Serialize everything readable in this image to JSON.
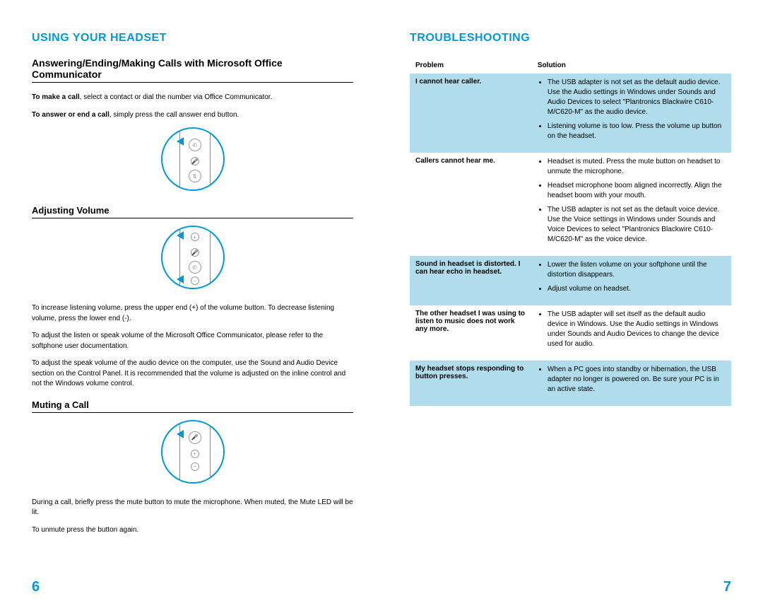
{
  "colors": {
    "accent": "#0099d6",
    "shade": "#b0dceb",
    "text": "#000000",
    "background": "#ffffff",
    "diagram_stroke": "#888888"
  },
  "left": {
    "title": "USING YOUR HEADSET",
    "heading1": "Answering/Ending/Making Calls with Microsoft Office Communicator",
    "p1_bold": "To make a call",
    "p1_rest": ", select a contact or dial the number via Office Communicator.",
    "p2_bold": "To answer or end a call",
    "p2_rest": ", simply press the call answer end button.",
    "heading2": "Adjusting Volume",
    "vol_p1": "To increase listening volume, press the upper end (+) of the volume button. To decrease listening volume, press the lower end (-).",
    "vol_p2": "To adjust the listen or speak volume of the Microsoft Office Communicator, please refer to the softphone user documentation.",
    "vol_p3": "To adjust the speak volume of the audio device on the computer, use the Sound and Audio Device section on the Control Panel. It is recommended that the volume is adjusted on the inline control and not the Windows volume control.",
    "heading3": "Muting a Call",
    "mute_p1": "During a call, briefly press the mute button to mute the microphone. When muted, the Mute LED will be lit.",
    "mute_p2": "To unmute press the button again.",
    "page_number": "6"
  },
  "right": {
    "title": "TROUBLESHOOTING",
    "col_problem": "Problem",
    "col_solution": "Solution",
    "rows": [
      {
        "problem": "I cannot hear caller.",
        "solutions": [
          "The USB adapter is not set as the default audio device. Use the Audio settings in Windows under Sounds and Audio Devices to select \"Plantronics Blackwire C610-M/C620-M\" as the audio device.",
          "Listening volume is too low. Press the volume up button on the headset."
        ],
        "shaded": true
      },
      {
        "problem": "Callers cannot hear me.",
        "solutions": [
          "Headset is muted. Press the mute button on headset to unmute the microphone.",
          "Headset microphone boom aligned incorrectly. Align the headset boom with your mouth.",
          "The USB adapter is not set as the default voice device. Use the Voice settings in Windows under Sounds and Voice Devices to select \"Plantronics Blackwire C610-M/C620-M\" as the voice device."
        ],
        "shaded": false
      },
      {
        "problem": "Sound in headset is distorted. I can hear echo in headset.",
        "solutions": [
          "Lower the listen volume on your softphone until the distortion disappears.",
          "Adjust volume on headset."
        ],
        "shaded": true
      },
      {
        "problem": "The other headset I was using to listen to music does not work any more.",
        "solutions": [
          "The USB adapter will set itself as the default audio device in Windows. Use the Audio settings in Windows under Sounds and Audio Devices to change the device used for audio."
        ],
        "shaded": false
      },
      {
        "problem": "My headset stops responding to button presses.",
        "solutions": [
          "When a PC goes into standby or hibernation, the USB adapter no longer is powered on. Be sure your PC is in an active state."
        ],
        "shaded": true
      }
    ],
    "page_number": "7"
  }
}
